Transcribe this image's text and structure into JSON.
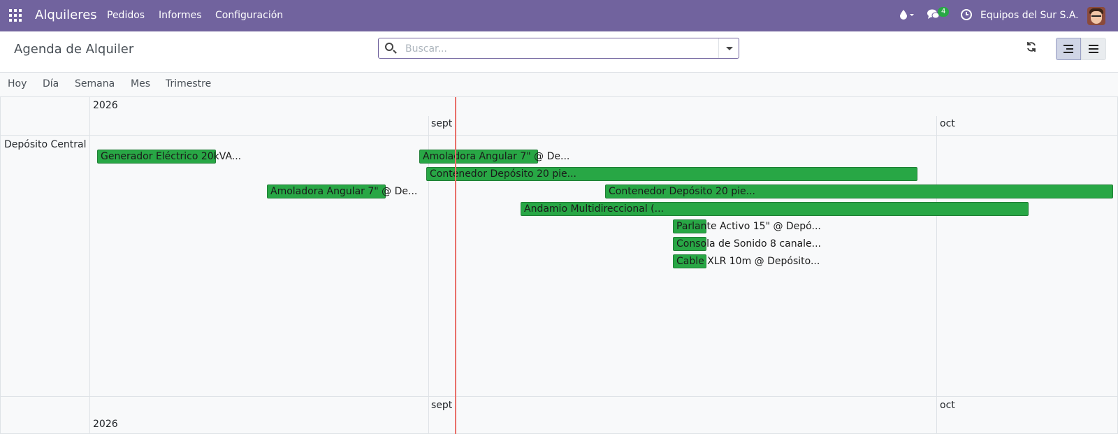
{
  "navbar": {
    "app_name": "Alquileres",
    "menu": [
      "Pedidos",
      "Informes",
      "Configuración"
    ],
    "messages_count": "4",
    "company": "Equipos del Sur S.A.",
    "color": "#71639e"
  },
  "control_panel": {
    "title": "Agenda de Alquiler",
    "search_placeholder": "Buscar...",
    "search_value": ""
  },
  "scales": [
    "Hoy",
    "Día",
    "Semana",
    "Mes",
    "Trimestre"
  ],
  "gantt": {
    "year": "2026",
    "months": [
      "sept",
      "oct"
    ],
    "row": "Depósito Central",
    "pills": [
      "Generador Eléctrico 20kVA...",
      "Amoladora Angular 7\" @ De...",
      "Contenedor Depósito 20 pie...",
      "Amoladora Angular 7\" @ De...",
      "Contenedor Depósito 20 pie...",
      "Andamio Multidireccional (...",
      "Parlante Activo 15\" @ Depó...",
      "Consola de Sonido 8 canale...",
      "Cable XLR 10m @ Depósito..."
    ],
    "pill_color": "#28a745",
    "today_line_color": "#e9706a"
  }
}
